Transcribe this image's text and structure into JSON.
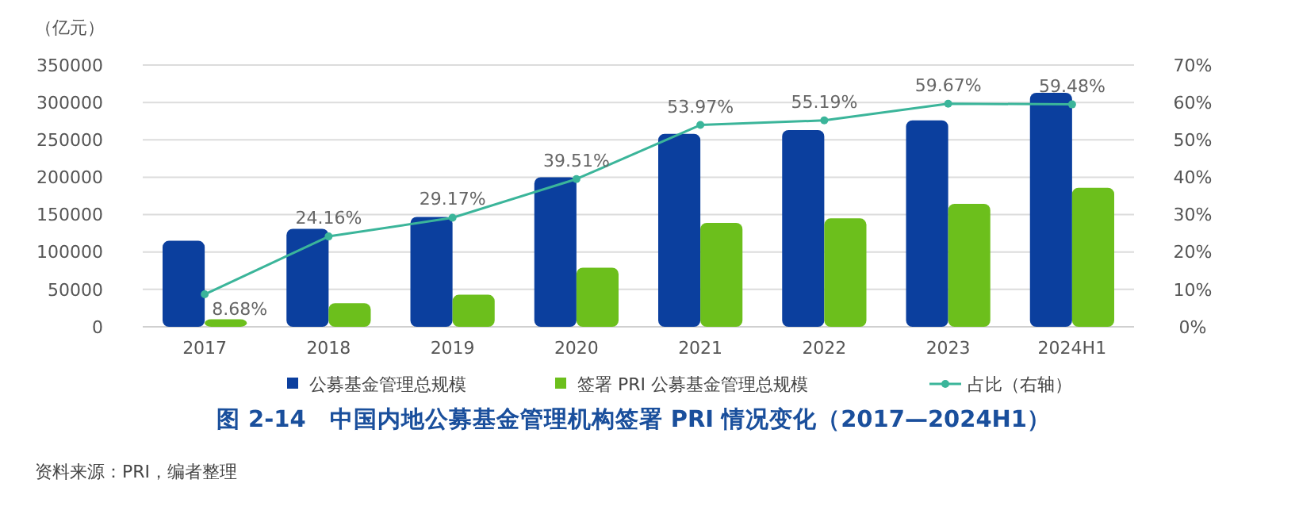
{
  "chart_data": {
    "type": "bar",
    "title": "图 2-14　中国内地公募基金管理机构签署 PRI 情况变化（2017—2024H1）",
    "ylabel": "（亿元）",
    "annotations": [
      "资料来源：PRI，编者整理"
    ],
    "categories": [
      "2017",
      "2018",
      "2019",
      "2020",
      "2021",
      "2022",
      "2023",
      "2024H1"
    ],
    "series": [
      {
        "name": "公募基金管理总规模",
        "color": "#0b3f9e",
        "values": [
          115000,
          131000,
          147000,
          200000,
          258000,
          263000,
          276000,
          313000
        ]
      },
      {
        "name": "签署 PRI 公募基金管理总规模",
        "color": "#6cbf1c",
        "values": [
          10000,
          31600,
          42900,
          79000,
          139000,
          145000,
          164500,
          186000
        ]
      },
      {
        "name": "占比（右轴）",
        "type": "line",
        "axis": "y2",
        "color": "#3bb59a",
        "marker": "circle",
        "values": [
          8.68,
          24.16,
          29.17,
          39.51,
          53.97,
          55.19,
          59.67,
          59.48
        ],
        "value_labels": [
          "8.68%",
          "24.16%",
          "29.17%",
          "39.51%",
          "53.97%",
          "55.19%",
          "59.67%",
          "59.48%"
        ]
      }
    ],
    "ylim": [
      0,
      350000
    ],
    "yticks": [
      0,
      50000,
      100000,
      150000,
      200000,
      250000,
      300000,
      350000
    ],
    "y2lim": [
      0,
      70
    ],
    "y2ticks": [
      {
        "value": 0,
        "label": "0%"
      },
      {
        "value": 10,
        "label": "10%"
      },
      {
        "value": 20,
        "label": "20%"
      },
      {
        "value": 30,
        "label": "30%"
      },
      {
        "value": 40,
        "label": "40%"
      },
      {
        "value": 50,
        "label": "50%"
      },
      {
        "value": 60,
        "label": "60%"
      },
      {
        "value": 70,
        "label": "70%"
      }
    ],
    "grid": "y",
    "legend": "bottom"
  }
}
